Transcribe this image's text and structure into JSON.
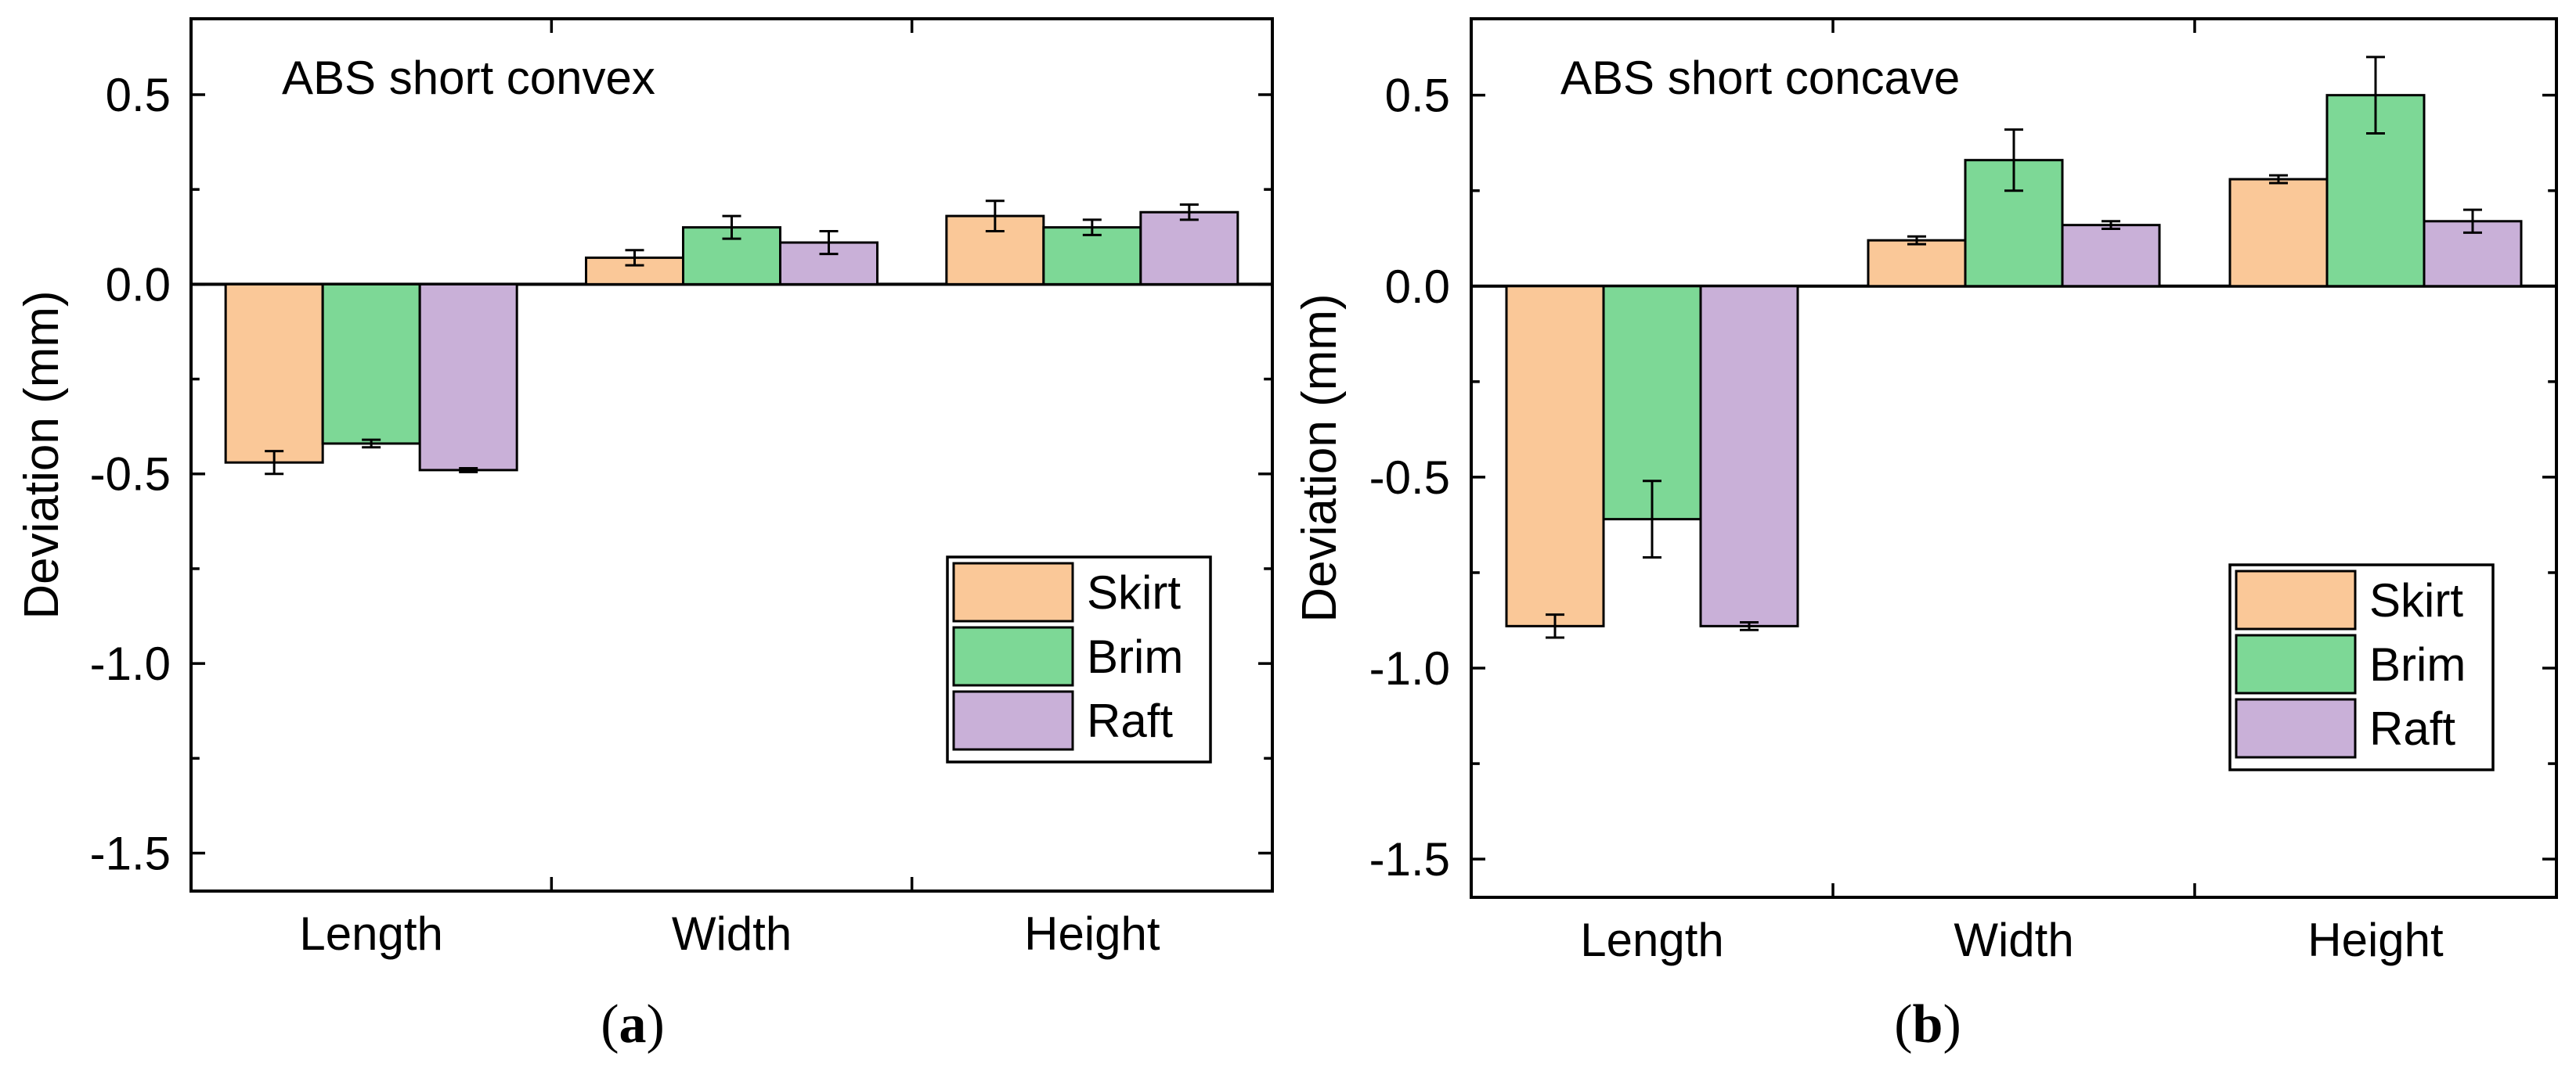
{
  "figure": {
    "panels": [
      "(a)",
      "(b)"
    ]
  },
  "colors": {
    "Skirt": "#FAC898",
    "Brim": "#7DD896",
    "Raft": "#C9B0D8"
  },
  "chart_data": [
    {
      "type": "bar",
      "panel_label": "a",
      "title": "ABS short convex",
      "xlabel": "",
      "ylabel": "Deviation (mm)",
      "categories": [
        "Length",
        "Width",
        "Height"
      ],
      "ylim": [
        -1.6,
        0.7
      ],
      "yticks": [
        -1.5,
        -1.0,
        -0.5,
        0.0,
        0.5
      ],
      "ytick_labels": [
        "-1.5",
        "-1.0",
        "-0.5",
        "0.0",
        "0.5"
      ],
      "legend_position": "bottom-right",
      "series": [
        {
          "name": "Skirt",
          "values": [
            -0.47,
            0.07,
            0.18
          ],
          "errors": [
            0.03,
            0.02,
            0.04
          ]
        },
        {
          "name": "Brim",
          "values": [
            -0.42,
            0.15,
            0.15
          ],
          "errors": [
            0.01,
            0.03,
            0.02
          ]
        },
        {
          "name": "Raft",
          "values": [
            -0.49,
            0.11,
            0.19
          ],
          "errors": [
            0.005,
            0.03,
            0.02
          ]
        }
      ]
    },
    {
      "type": "bar",
      "panel_label": "b",
      "title": "ABS short concave",
      "xlabel": "",
      "ylabel": "Deviation (mm)",
      "categories": [
        "Length",
        "Width",
        "Height"
      ],
      "ylim": [
        -1.6,
        0.7
      ],
      "yticks": [
        -1.5,
        -1.0,
        -0.5,
        0.0,
        0.5
      ],
      "ytick_labels": [
        "-1.5",
        "-1.0",
        "-0.5",
        "0.0",
        "0.5"
      ],
      "legend_position": "bottom-right",
      "series": [
        {
          "name": "Skirt",
          "values": [
            -0.89,
            0.12,
            0.28
          ],
          "errors": [
            0.03,
            0.01,
            0.01
          ]
        },
        {
          "name": "Brim",
          "values": [
            -0.61,
            0.33,
            0.5
          ],
          "errors": [
            0.1,
            0.08,
            0.1
          ]
        },
        {
          "name": "Raft",
          "values": [
            -0.89,
            0.16,
            0.17
          ],
          "errors": [
            0.01,
            0.01,
            0.03
          ]
        }
      ]
    }
  ]
}
